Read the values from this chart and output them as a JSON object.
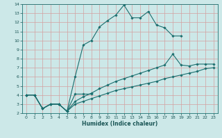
{
  "xlabel": "Humidex (Indice chaleur)",
  "background_color": "#cce8e8",
  "grid_color": "#aacccc",
  "line_color": "#1a6e6e",
  "xlim": [
    -0.5,
    23.5
  ],
  "ylim": [
    2,
    14
  ],
  "xticks": [
    0,
    1,
    2,
    3,
    4,
    5,
    6,
    7,
    8,
    9,
    10,
    11,
    12,
    13,
    14,
    15,
    16,
    17,
    18,
    19,
    20,
    21,
    22,
    23
  ],
  "yticks": [
    2,
    3,
    4,
    5,
    6,
    7,
    8,
    9,
    10,
    11,
    12,
    13,
    14
  ],
  "lines": [
    {
      "x": [
        0,
        1,
        2,
        3,
        4,
        5,
        6,
        7,
        8,
        9,
        10,
        11,
        12,
        13,
        14,
        15,
        16,
        17,
        18,
        19
      ],
      "y": [
        4,
        4,
        2.5,
        3,
        3,
        2.2,
        6.0,
        9.5,
        10.0,
        11.5,
        12.2,
        12.8,
        13.9,
        12.5,
        12.5,
        13.2,
        11.7,
        11.4,
        10.5,
        10.5
      ]
    },
    {
      "x": [
        0,
        1,
        2,
        3,
        4,
        5,
        6,
        7,
        8
      ],
      "y": [
        4.0,
        4.0,
        2.5,
        3.0,
        3.0,
        2.2,
        4.1,
        4.1,
        4.1
      ]
    },
    {
      "x": [
        0,
        1,
        2,
        3,
        4,
        5,
        6,
        7,
        8,
        9,
        10,
        11,
        12,
        13,
        14,
        15,
        16,
        17,
        18,
        19,
        20,
        21,
        22,
        23
      ],
      "y": [
        4.0,
        4.0,
        2.5,
        3.0,
        3.0,
        2.2,
        3.3,
        3.8,
        4.2,
        4.7,
        5.1,
        5.5,
        5.8,
        6.1,
        6.4,
        6.7,
        7.0,
        7.3,
        8.5,
        7.3,
        7.2,
        7.4,
        7.4,
        7.4
      ]
    },
    {
      "x": [
        0,
        1,
        2,
        3,
        4,
        5,
        6,
        7,
        8,
        9,
        10,
        11,
        12,
        13,
        14,
        15,
        16,
        17,
        18,
        19,
        20,
        21,
        22,
        23
      ],
      "y": [
        4.0,
        4.0,
        2.5,
        3.0,
        3.0,
        2.2,
        3.0,
        3.3,
        3.6,
        3.9,
        4.2,
        4.5,
        4.7,
        4.9,
        5.1,
        5.3,
        5.5,
        5.8,
        6.0,
        6.2,
        6.4,
        6.6,
        6.9,
        7.0
      ]
    }
  ]
}
